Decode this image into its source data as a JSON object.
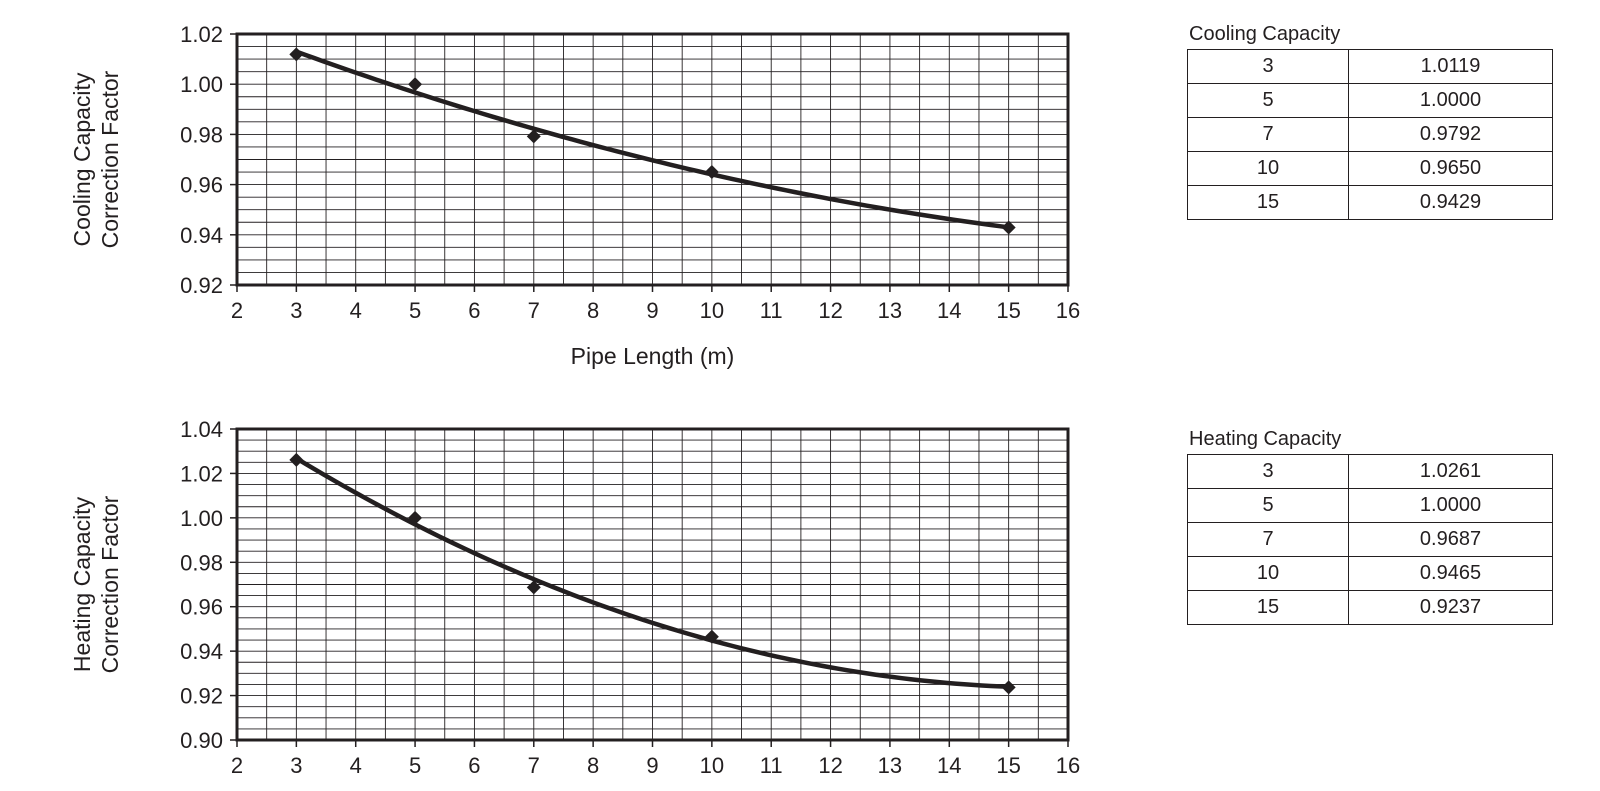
{
  "charts_section": {
    "chart_data": [
      {
        "type": "line",
        "xlabel": "Pipe Length (m)",
        "ylabel": [
          "Cooling Capacity",
          "Correction Factor"
        ],
        "xlim": [
          2,
          16
        ],
        "ylim": [
          0.92,
          1.02
        ],
        "x_ticks": [
          "2",
          "3",
          "4",
          "5",
          "6",
          "7",
          "8",
          "9",
          "10",
          "11",
          "12",
          "13",
          "14",
          "15",
          "16"
        ],
        "y_ticks": [
          "0.92",
          "0.94",
          "0.96",
          "0.98",
          "1.00",
          "1.02"
        ],
        "grid": true,
        "series": [
          {
            "x": [
              3,
              5,
              7,
              10,
              15
            ],
            "y": [
              1.0119,
              1.0,
              0.9792,
              0.965,
              0.9429
            ],
            "marker": "diamond",
            "line": "smooth",
            "color": "#231f20"
          }
        ]
      },
      {
        "type": "line",
        "xlabel": "",
        "ylabel": [
          "Heating Capacity",
          "Correction Factor"
        ],
        "xlim": [
          2,
          16
        ],
        "ylim": [
          0.9,
          1.04
        ],
        "x_ticks": [
          "2",
          "3",
          "4",
          "5",
          "6",
          "7",
          "8",
          "9",
          "10",
          "11",
          "12",
          "13",
          "14",
          "15",
          "16"
        ],
        "y_ticks": [
          "0.90",
          "0.92",
          "0.94",
          "0.96",
          "0.98",
          "1.00",
          "1.02",
          "1.04"
        ],
        "grid": true,
        "series": [
          {
            "x": [
              3,
              5,
              7,
              10,
              15
            ],
            "y": [
              1.0261,
              1.0,
              0.9687,
              0.9465,
              0.9237
            ],
            "marker": "diamond",
            "line": "smooth",
            "color": "#231f20"
          }
        ]
      }
    ]
  },
  "cooling_table": {
    "title": "Cooling Capacity",
    "rows": [
      {
        "length": "3",
        "factor": "1.0119"
      },
      {
        "length": "5",
        "factor": "1.0000"
      },
      {
        "length": "7",
        "factor": "0.9792"
      },
      {
        "length": "10",
        "factor": "0.9650"
      },
      {
        "length": "15",
        "factor": "0.9429"
      }
    ]
  },
  "heating_table": {
    "title": "Heating Capacity",
    "rows": [
      {
        "length": "3",
        "factor": "1.0261"
      },
      {
        "length": "5",
        "factor": "1.0000"
      },
      {
        "length": "7",
        "factor": "0.9687"
      },
      {
        "length": "10",
        "factor": "0.9465"
      },
      {
        "length": "15",
        "factor": "0.9237"
      }
    ]
  },
  "colors": {
    "ink": "#231f20",
    "grid": "#231f20",
    "background": "#ffffff"
  }
}
